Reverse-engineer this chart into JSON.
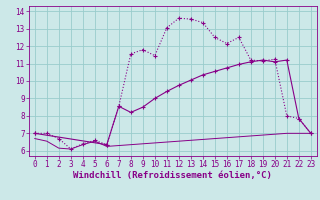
{
  "xlabel": "Windchill (Refroidissement éolien,°C)",
  "bg_color": "#cce8e8",
  "line_color": "#880088",
  "xlim": [
    -0.5,
    23.5
  ],
  "ylim": [
    5.7,
    14.3
  ],
  "xticks": [
    0,
    1,
    2,
    3,
    4,
    5,
    6,
    7,
    8,
    9,
    10,
    11,
    12,
    13,
    14,
    15,
    16,
    17,
    18,
    19,
    20,
    21,
    22,
    23
  ],
  "yticks": [
    6,
    7,
    8,
    9,
    10,
    11,
    12,
    13,
    14
  ],
  "curve_dotted_x": [
    0,
    1,
    2,
    3,
    4,
    5,
    6,
    7,
    8,
    9,
    10,
    11,
    12,
    13,
    14,
    15,
    16,
    17,
    18,
    19,
    20,
    21,
    22,
    23
  ],
  "curve_dotted_y": [
    7.0,
    7.0,
    6.7,
    6.1,
    6.4,
    6.6,
    6.35,
    8.55,
    11.55,
    11.8,
    11.45,
    13.05,
    13.6,
    13.55,
    13.35,
    12.5,
    12.15,
    12.5,
    11.2,
    11.15,
    11.25,
    8.0,
    7.85,
    7.0
  ],
  "curve_solid_x": [
    0,
    6,
    7,
    8,
    9,
    10,
    11,
    12,
    13,
    14,
    15,
    16,
    17,
    18,
    19,
    20,
    21,
    22,
    23
  ],
  "curve_solid_y": [
    7.0,
    6.35,
    8.55,
    8.2,
    8.5,
    9.0,
    9.4,
    9.75,
    10.05,
    10.35,
    10.55,
    10.75,
    10.95,
    11.1,
    11.2,
    11.1,
    11.2,
    7.85,
    7.0
  ],
  "curve_flat_x": [
    0,
    1,
    2,
    3,
    4,
    5,
    6,
    7,
    8,
    9,
    10,
    11,
    12,
    13,
    14,
    15,
    16,
    17,
    18,
    19,
    20,
    21,
    22,
    23
  ],
  "curve_flat_y": [
    6.7,
    6.55,
    6.15,
    6.1,
    6.35,
    6.55,
    6.25,
    6.3,
    6.35,
    6.4,
    6.45,
    6.5,
    6.55,
    6.6,
    6.65,
    6.7,
    6.75,
    6.8,
    6.85,
    6.9,
    6.95,
    7.0,
    7.0,
    7.0
  ],
  "grid_color": "#99cccc",
  "tick_fontsize": 5.5,
  "label_fontsize": 6.5,
  "marker": "+"
}
